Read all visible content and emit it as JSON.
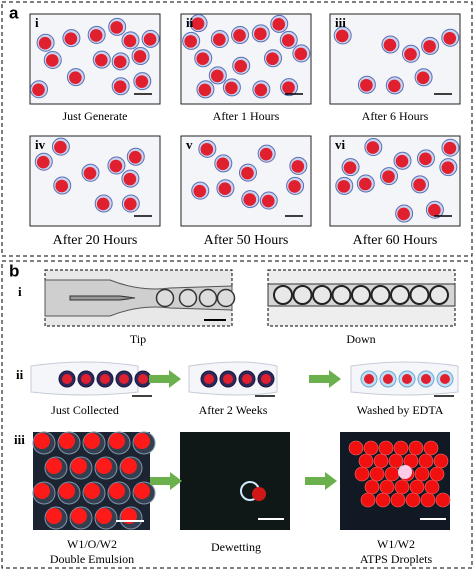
{
  "panel_a": {
    "label": "a",
    "images": [
      {
        "numeral": "i",
        "caption": "Just Generate"
      },
      {
        "numeral": "ii",
        "caption": "After 1 Hours"
      },
      {
        "numeral": "iii",
        "caption": "After 6 Hours"
      },
      {
        "numeral": "iv",
        "caption": "After 20 Hours"
      },
      {
        "numeral": "v",
        "caption": "After 50 Hours"
      },
      {
        "numeral": "vi",
        "caption": "After 60 Hours"
      }
    ]
  },
  "panel_b": {
    "label": "b",
    "rows": [
      {
        "numeral": "i",
        "captions": [
          [
            "Tip"
          ],
          [
            "Down"
          ]
        ]
      },
      {
        "numeral": "ii",
        "captions": [
          [
            "Just Collected"
          ],
          [
            "After 2 Weeks"
          ],
          [
            "Washed by EDTA"
          ]
        ]
      },
      {
        "numeral": "iii",
        "captions": [
          [
            "W1/O/W2",
            "Double Emulsion"
          ],
          [
            "Dewetting"
          ],
          [
            "W1/W2",
            "ATPS Droplets"
          ]
        ]
      }
    ]
  }
}
